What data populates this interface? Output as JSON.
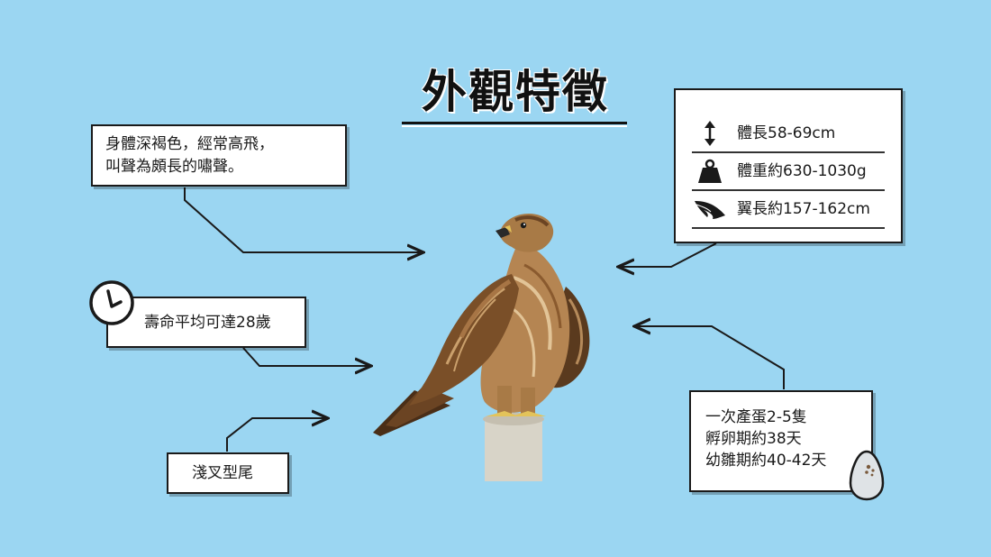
{
  "title": "外觀特徵",
  "description": {
    "line1": "身體深褐色，經常高飛，",
    "line2": "叫聲為頗長的嘯聲。"
  },
  "lifespan": "壽命平均可達28歲",
  "tail": "淺叉型尾",
  "stats": [
    {
      "icon": "vertical-arrow-icon",
      "label": "體長58-69cm"
    },
    {
      "icon": "weight-icon",
      "label": "體重約630-1030g"
    },
    {
      "icon": "wing-icon",
      "label": "翼長約157-162cm"
    }
  ],
  "eggs": {
    "line1": "一次產蛋2-5隻",
    "line2": "孵卵期約38天",
    "line3": "幼雛期約40-42天"
  },
  "colors": {
    "background": "#9bd6f2",
    "box_border": "#1a1a1a",
    "eagle_brown": "#8a5a2e"
  }
}
